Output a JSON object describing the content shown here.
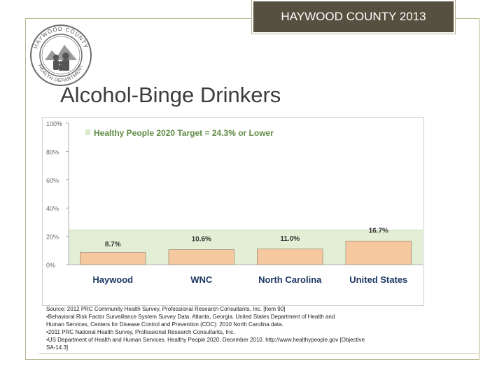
{
  "header": {
    "title": "HAYWOOD COUNTY  2013"
  },
  "logo": {
    "icon": "county-health-department-seal-icon",
    "text": "HAYWOOD COUNTY HEALTH DEPARTMENT"
  },
  "page_title": "Alcohol-Binge Drinkers",
  "chart_data": {
    "type": "bar",
    "title": "",
    "categories": [
      "Haywood",
      "WNC",
      "North Carolina",
      "United States"
    ],
    "values": [
      8.7,
      10.6,
      11.0,
      16.7
    ],
    "value_labels": [
      "8.7%",
      "10.6%",
      "11.0%",
      "16.7%"
    ],
    "ylim": [
      0,
      100
    ],
    "yticks": [
      0,
      20,
      40,
      60,
      80,
      100
    ],
    "ytick_labels": [
      "0%",
      "20%",
      "40%",
      "60%",
      "80%",
      "100%"
    ],
    "target": {
      "label": "Healthy People 2020 Target = 24.3% or Lower",
      "value": 24.3
    },
    "grid": false,
    "legend": "top-left",
    "colors": {
      "bar": "#f6c8a0",
      "bar_stroke": "#8a7a6a",
      "target_band": "#e3efd5",
      "target_swatch": "#d8e8c8",
      "legend_text": "#5f8a44"
    }
  },
  "source_notes": [
    "Source:  2012 PRC Community Health Survey,  Professional Research Consultants, Inc.  [Item 90]",
    "•Behavioral Risk Factor Surveillance System Survey Data.  Atlanta, Georgia.  United States Department of Health and",
    "  Human Services, Centers for  Disease Control and Prevention (CDC): 2010 North Carolina data.",
    "•2011 PRC National Health Survey, Professional Research Consultants, Inc.",
    "•US Department of Health and Human Services.  Healthy People 2020.  December 2010.  http://www.healthypeople.gov  [Objective",
    "SA-14.3]"
  ]
}
